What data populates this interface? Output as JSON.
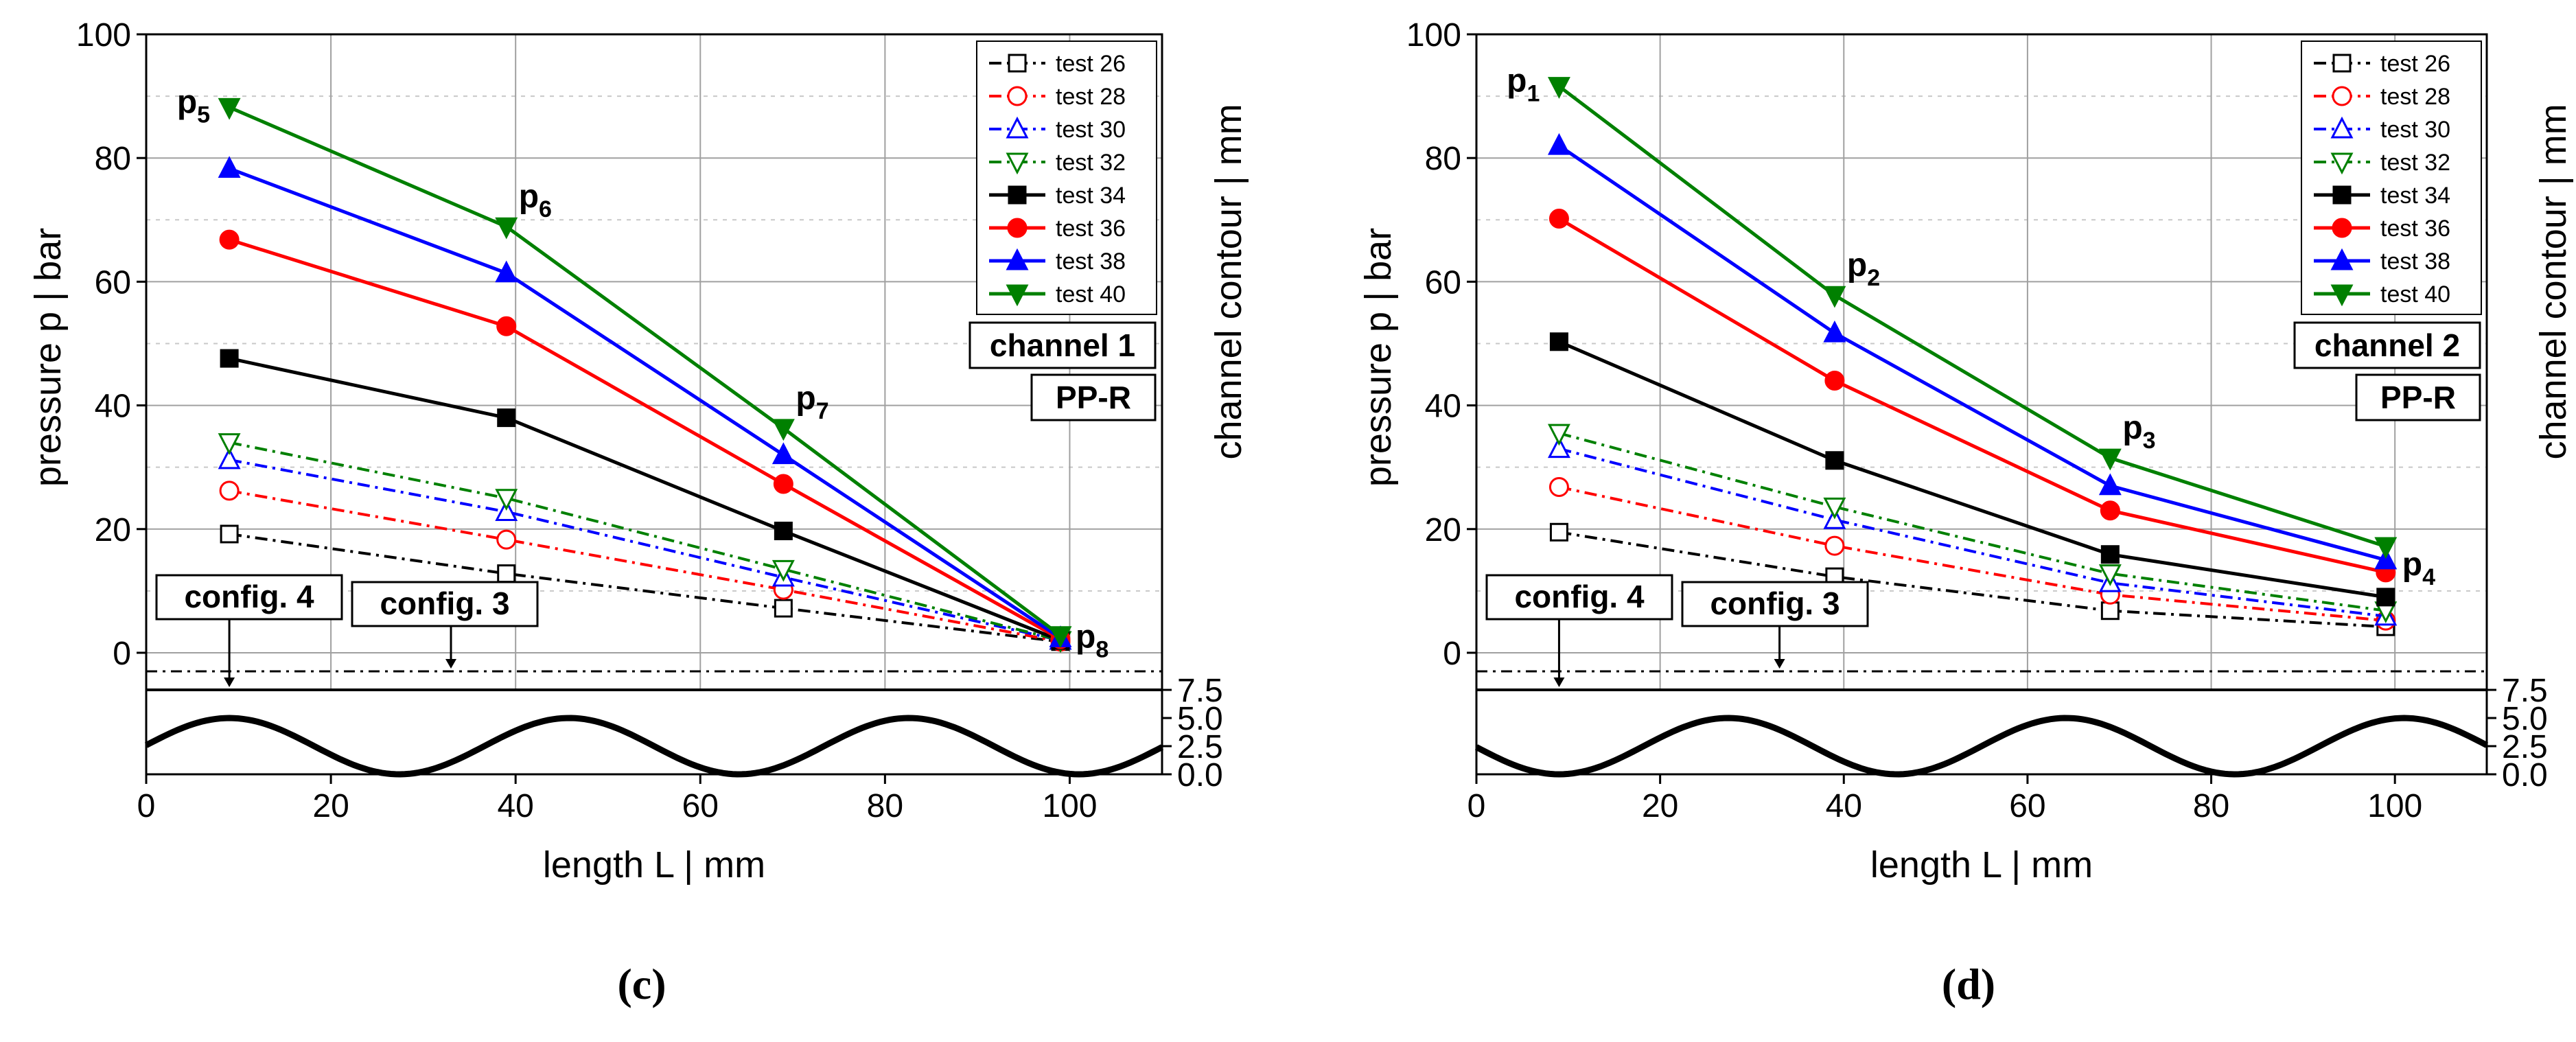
{
  "chart_data": [
    {
      "type": "line",
      "caption": "(c)",
      "xlabel": "length L  |  mm",
      "ylabel": "pressure p  |  bar",
      "ylabel_right": "channel contour  |  mm",
      "xlim": [
        0,
        110
      ],
      "ylim": [
        -3,
        100
      ],
      "xticks": [
        "0",
        "20",
        "40",
        "60",
        "80",
        "100"
      ],
      "yticks": [
        "0",
        "20",
        "40",
        "60",
        "80",
        "100"
      ],
      "contour_ticks": [
        "0.0",
        "2.5",
        "5.0",
        "7.5"
      ],
      "contour_lim": [
        0,
        7.5
      ],
      "grid": true,
      "legend_position": "top-right",
      "x": [
        9,
        39,
        69,
        99
      ],
      "series": [
        {
          "name": "test 26",
          "values": [
            19.2,
            12.8,
            7.2,
            1.8
          ],
          "color": "#000000",
          "dash": "dashdot",
          "marker": "square",
          "filled": false
        },
        {
          "name": "test 28",
          "values": [
            26.2,
            18.3,
            10.2,
            1.8
          ],
          "color": "#ff0000",
          "dash": "dashdot",
          "marker": "circle",
          "filled": false
        },
        {
          "name": "test 30",
          "values": [
            31.2,
            22.8,
            12.2,
            2.0
          ],
          "color": "#0000ff",
          "dash": "dashdot",
          "marker": "triangle-up",
          "filled": false
        },
        {
          "name": "test 32",
          "values": [
            34.0,
            25.0,
            13.5,
            2.0
          ],
          "color": "#008000",
          "dash": "dashdot",
          "marker": "triangle-down",
          "filled": false
        },
        {
          "name": "test 34",
          "values": [
            47.6,
            38.0,
            19.7,
            2.0
          ],
          "color": "#000000",
          "dash": "solid",
          "marker": "square",
          "filled": true
        },
        {
          "name": "test 36",
          "values": [
            66.8,
            52.8,
            27.3,
            2.2
          ],
          "color": "#ff0000",
          "dash": "solid",
          "marker": "circle",
          "filled": true
        },
        {
          "name": "test 38",
          "values": [
            78.3,
            61.4,
            32.0,
            2.4
          ],
          "color": "#0000ff",
          "dash": "solid",
          "marker": "triangle-up",
          "filled": true
        },
        {
          "name": "test 40",
          "values": [
            88.2,
            68.9,
            36.3,
            2.8
          ],
          "color": "#008000",
          "dash": "solid",
          "marker": "triangle-down",
          "filled": true
        }
      ],
      "point_labels": [
        {
          "base": "p",
          "sub": "5",
          "x": 9,
          "y": 88.2,
          "side": "left"
        },
        {
          "base": "p",
          "sub": "6",
          "x": 39,
          "y": 68.9,
          "side": "above-right"
        },
        {
          "base": "p",
          "sub": "7",
          "x": 69,
          "y": 36.3,
          "side": "above-right"
        },
        {
          "base": "p",
          "sub": "8",
          "x": 99,
          "y": 2.8,
          "side": "right"
        }
      ],
      "boxes": [
        "channel 1",
        "PP-R"
      ],
      "config_boxes": [
        {
          "label": "config. 4",
          "arrow_x": 9,
          "line": "solid"
        },
        {
          "label": "config. 3",
          "arrow_x": 33,
          "line": "dashdot"
        }
      ],
      "contour": {
        "phase": "peak-at-9",
        "period_mm": 36.8
      }
    },
    {
      "type": "line",
      "caption": "(d)",
      "xlabel": "length L  |  mm",
      "ylabel": "pressure p  |  bar",
      "ylabel_right": "channel contour  |  mm",
      "xlim": [
        0,
        110
      ],
      "ylim": [
        -3,
        100
      ],
      "xticks": [
        "0",
        "20",
        "40",
        "60",
        "80",
        "100"
      ],
      "yticks": [
        "0",
        "20",
        "40",
        "60",
        "80",
        "100"
      ],
      "contour_ticks": [
        "0.0",
        "2.5",
        "5.0",
        "7.5"
      ],
      "contour_lim": [
        0,
        7.5
      ],
      "grid": true,
      "legend_position": "top-right",
      "x": [
        9,
        39,
        69,
        99
      ],
      "series": [
        {
          "name": "test 26",
          "values": [
            19.5,
            12.3,
            6.8,
            4.2
          ],
          "color": "#000000",
          "dash": "dashdot",
          "marker": "square",
          "filled": false
        },
        {
          "name": "test 28",
          "values": [
            26.8,
            17.3,
            9.4,
            5.2
          ],
          "color": "#ff0000",
          "dash": "dashdot",
          "marker": "circle",
          "filled": false
        },
        {
          "name": "test 30",
          "values": [
            33.0,
            21.5,
            11.3,
            5.9
          ],
          "color": "#0000ff",
          "dash": "dashdot",
          "marker": "triangle-up",
          "filled": false
        },
        {
          "name": "test 32",
          "values": [
            35.5,
            23.6,
            12.8,
            6.8
          ],
          "color": "#008000",
          "dash": "dashdot",
          "marker": "triangle-down",
          "filled": false
        },
        {
          "name": "test 34",
          "values": [
            50.3,
            31.1,
            15.9,
            9.0
          ],
          "color": "#000000",
          "dash": "solid",
          "marker": "square",
          "filled": true
        },
        {
          "name": "test 36",
          "values": [
            70.2,
            44.0,
            23.0,
            13.0
          ],
          "color": "#ff0000",
          "dash": "solid",
          "marker": "circle",
          "filled": true
        },
        {
          "name": "test 38",
          "values": [
            82.0,
            51.7,
            27.0,
            15.0
          ],
          "color": "#0000ff",
          "dash": "solid",
          "marker": "triangle-up",
          "filled": true
        },
        {
          "name": "test 40",
          "values": [
            91.6,
            57.8,
            31.5,
            17.2
          ],
          "color": "#008000",
          "dash": "solid",
          "marker": "triangle-down",
          "filled": true
        }
      ],
      "point_labels": [
        {
          "base": "p",
          "sub": "1",
          "x": 9,
          "y": 91.6,
          "side": "left"
        },
        {
          "base": "p",
          "sub": "2",
          "x": 39,
          "y": 57.8,
          "side": "above-right"
        },
        {
          "base": "p",
          "sub": "3",
          "x": 69,
          "y": 31.5,
          "side": "above-right"
        },
        {
          "base": "p",
          "sub": "4",
          "x": 99,
          "y": 17.2,
          "side": "below-right"
        }
      ],
      "boxes": [
        "channel 2",
        "PP-R"
      ],
      "config_boxes": [
        {
          "label": "config. 4",
          "arrow_x": 9,
          "line": "solid"
        },
        {
          "label": "config. 3",
          "arrow_x": 33,
          "line": "dashdot"
        }
      ],
      "contour": {
        "phase": "trough-at-9",
        "period_mm": 36.8
      }
    }
  ]
}
